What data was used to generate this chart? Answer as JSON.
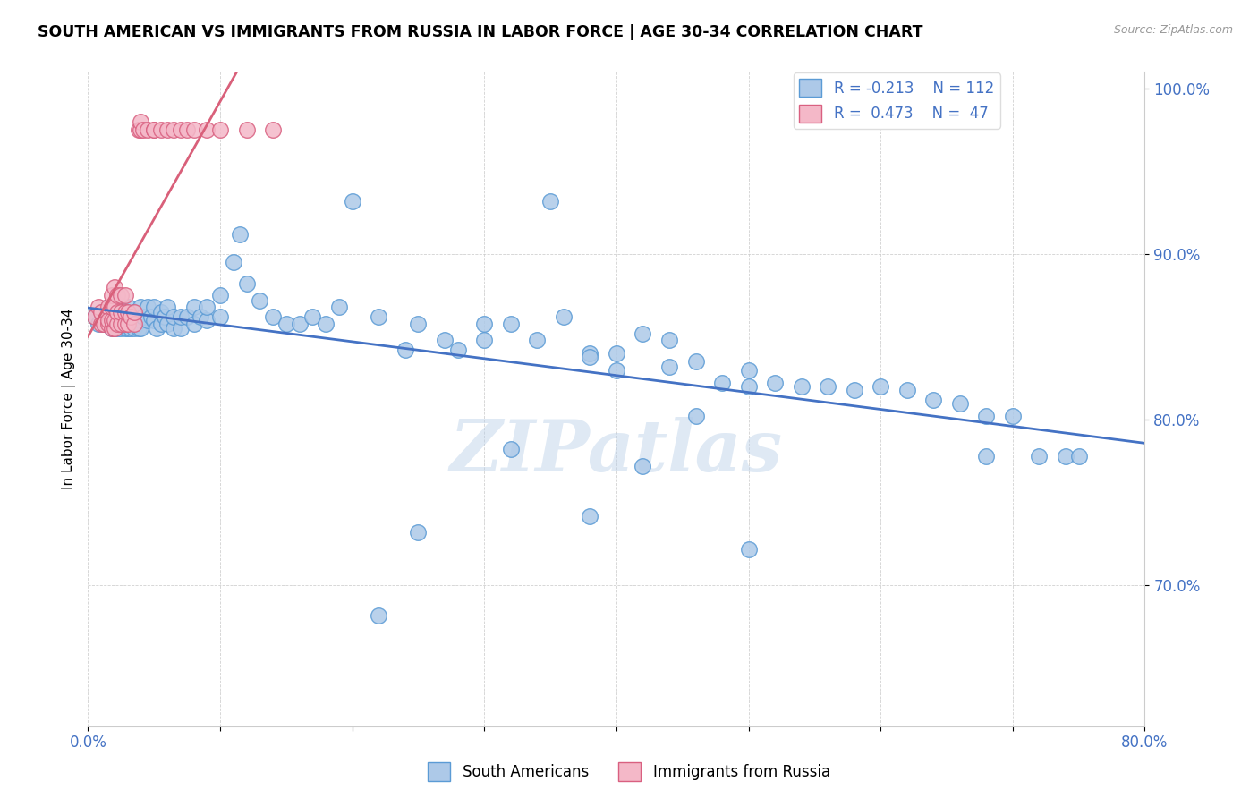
{
  "title": "SOUTH AMERICAN VS IMMIGRANTS FROM RUSSIA IN LABOR FORCE | AGE 30-34 CORRELATION CHART",
  "source": "Source: ZipAtlas.com",
  "ylabel": "In Labor Force | Age 30-34",
  "x_min": 0.0,
  "x_max": 0.8,
  "y_min": 0.615,
  "y_max": 1.01,
  "x_ticks": [
    0.0,
    0.1,
    0.2,
    0.3,
    0.4,
    0.5,
    0.6,
    0.7,
    0.8
  ],
  "y_ticks": [
    0.7,
    0.8,
    0.9,
    1.0
  ],
  "y_tick_labels": [
    "70.0%",
    "80.0%",
    "90.0%",
    "100.0%"
  ],
  "blue_face": "#adc9e8",
  "blue_edge": "#5b9bd5",
  "pink_face": "#f4b8c8",
  "pink_edge": "#d96080",
  "trend_blue": "#4472c4",
  "trend_pink": "#d9607a",
  "legend_blue_label": "R = -0.213    N = 112",
  "legend_pink_label": "R =  0.473    N =  47",
  "watermark": "ZIPatlas",
  "blue_scatter_x": [
    0.005,
    0.008,
    0.01,
    0.012,
    0.015,
    0.015,
    0.015,
    0.015,
    0.018,
    0.018,
    0.018,
    0.02,
    0.02,
    0.02,
    0.022,
    0.022,
    0.022,
    0.025,
    0.025,
    0.025,
    0.028,
    0.028,
    0.03,
    0.03,
    0.03,
    0.032,
    0.032,
    0.035,
    0.035,
    0.038,
    0.038,
    0.04,
    0.04,
    0.04,
    0.042,
    0.045,
    0.045,
    0.048,
    0.05,
    0.05,
    0.052,
    0.055,
    0.055,
    0.058,
    0.06,
    0.06,
    0.065,
    0.065,
    0.07,
    0.07,
    0.075,
    0.08,
    0.08,
    0.085,
    0.09,
    0.09,
    0.1,
    0.1,
    0.11,
    0.115,
    0.12,
    0.13,
    0.14,
    0.15,
    0.16,
    0.17,
    0.18,
    0.19,
    0.2,
    0.22,
    0.24,
    0.25,
    0.27,
    0.28,
    0.3,
    0.3,
    0.32,
    0.34,
    0.35,
    0.36,
    0.38,
    0.38,
    0.4,
    0.4,
    0.42,
    0.44,
    0.44,
    0.46,
    0.48,
    0.5,
    0.5,
    0.52,
    0.54,
    0.56,
    0.58,
    0.6,
    0.62,
    0.64,
    0.66,
    0.68,
    0.7,
    0.72,
    0.74,
    0.25,
    0.5,
    0.68,
    0.75,
    0.32,
    0.38,
    0.42,
    0.46,
    0.22
  ],
  "blue_scatter_y": [
    0.862,
    0.858,
    0.865,
    0.858,
    0.862,
    0.868,
    0.858,
    0.862,
    0.855,
    0.862,
    0.868,
    0.855,
    0.862,
    0.858,
    0.855,
    0.862,
    0.87,
    0.855,
    0.86,
    0.868,
    0.855,
    0.862,
    0.855,
    0.86,
    0.868,
    0.855,
    0.862,
    0.855,
    0.865,
    0.855,
    0.862,
    0.86,
    0.868,
    0.855,
    0.862,
    0.86,
    0.868,
    0.862,
    0.86,
    0.868,
    0.855,
    0.858,
    0.865,
    0.862,
    0.858,
    0.868,
    0.855,
    0.862,
    0.855,
    0.862,
    0.862,
    0.858,
    0.868,
    0.862,
    0.86,
    0.868,
    0.862,
    0.875,
    0.895,
    0.912,
    0.882,
    0.872,
    0.862,
    0.858,
    0.858,
    0.862,
    0.858,
    0.868,
    0.932,
    0.862,
    0.842,
    0.858,
    0.848,
    0.842,
    0.848,
    0.858,
    0.858,
    0.848,
    0.932,
    0.862,
    0.84,
    0.838,
    0.84,
    0.83,
    0.852,
    0.832,
    0.848,
    0.835,
    0.822,
    0.82,
    0.83,
    0.822,
    0.82,
    0.82,
    0.818,
    0.82,
    0.818,
    0.812,
    0.81,
    0.802,
    0.802,
    0.778,
    0.778,
    0.732,
    0.722,
    0.778,
    0.778,
    0.782,
    0.742,
    0.772,
    0.802,
    0.682
  ],
  "pink_scatter_x": [
    0.005,
    0.008,
    0.01,
    0.01,
    0.012,
    0.015,
    0.015,
    0.015,
    0.018,
    0.018,
    0.018,
    0.018,
    0.02,
    0.02,
    0.02,
    0.02,
    0.022,
    0.022,
    0.022,
    0.025,
    0.025,
    0.025,
    0.028,
    0.028,
    0.028,
    0.03,
    0.03,
    0.032,
    0.035,
    0.035,
    0.038,
    0.04,
    0.04,
    0.042,
    0.045,
    0.05,
    0.05,
    0.055,
    0.06,
    0.065,
    0.07,
    0.075,
    0.08,
    0.09,
    0.1,
    0.12,
    0.14
  ],
  "pink_scatter_y": [
    0.862,
    0.868,
    0.858,
    0.865,
    0.858,
    0.858,
    0.868,
    0.86,
    0.855,
    0.86,
    0.868,
    0.875,
    0.855,
    0.86,
    0.868,
    0.88,
    0.858,
    0.865,
    0.875,
    0.858,
    0.865,
    0.875,
    0.858,
    0.865,
    0.875,
    0.858,
    0.865,
    0.862,
    0.858,
    0.865,
    0.975,
    0.975,
    0.98,
    0.975,
    0.975,
    0.975,
    0.975,
    0.975,
    0.975,
    0.975,
    0.975,
    0.975,
    0.975,
    0.975,
    0.975,
    0.975,
    0.975
  ]
}
